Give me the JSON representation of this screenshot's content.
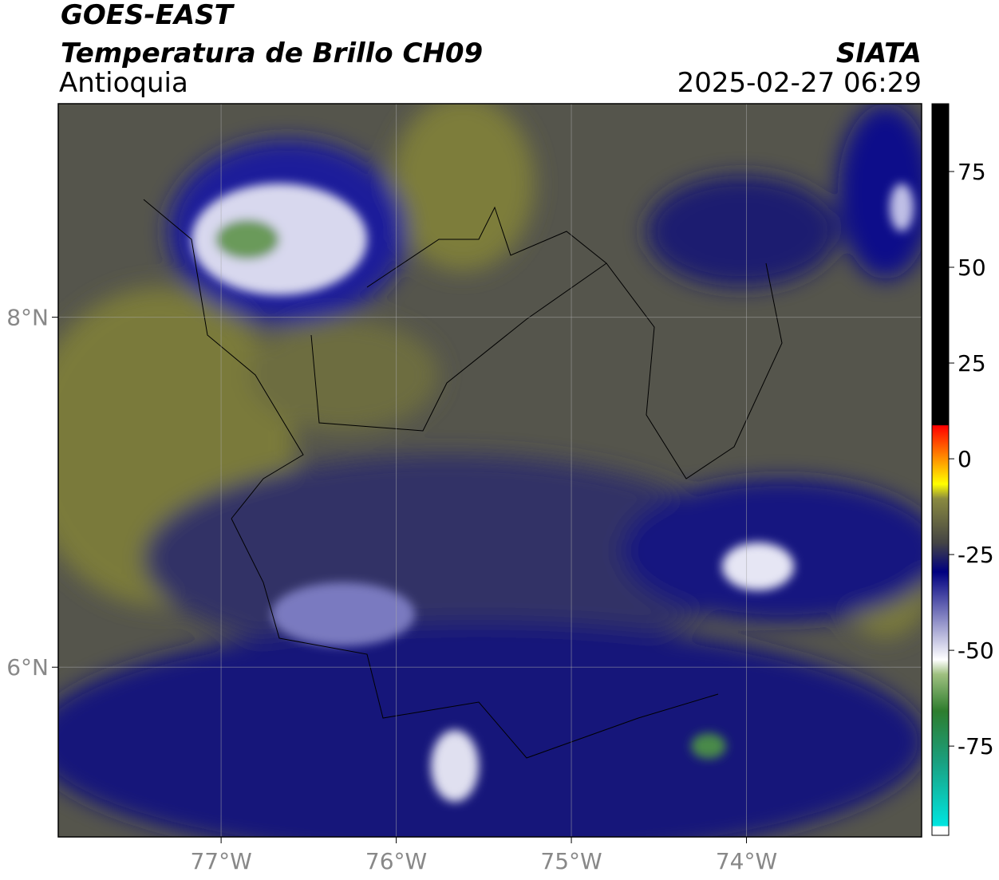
{
  "header": {
    "title": "GOES-EAST",
    "subtitle": "Temperatura de Brillo CH09",
    "region": "Antioquia",
    "source": "SIATA",
    "timestamp": "2025-02-27 06:29"
  },
  "map": {
    "xlim": [
      -77.93,
      -73.0
    ],
    "ylim": [
      5.03,
      9.22
    ],
    "grid": true,
    "xticks": [
      {
        "value": -77,
        "label": "77°W"
      },
      {
        "value": -76,
        "label": "76°W"
      },
      {
        "value": -75,
        "label": "75°W"
      },
      {
        "value": -74,
        "label": "74°W"
      }
    ],
    "yticks": [
      {
        "value": 8,
        "label": "8°N"
      },
      {
        "value": 6,
        "label": "6°N"
      }
    ]
  },
  "colorbar": {
    "lim": [
      -98.3,
      92.7
    ],
    "ticks": [
      75,
      50,
      25,
      0,
      -25,
      -50,
      -75
    ]
  }
}
